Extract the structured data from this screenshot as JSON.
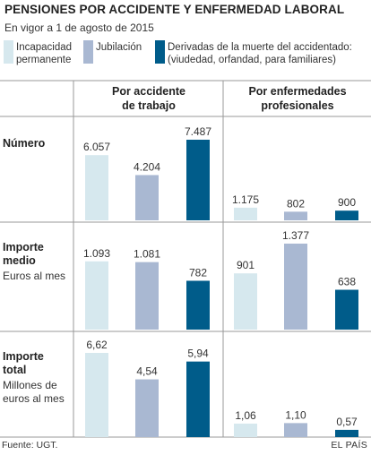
{
  "title": "PENSIONES POR ACCIDENTE Y ENFERMEDAD LABORAL",
  "subtitle": "En vigor a 1 de agosto de 2015",
  "legend": [
    {
      "label_line1": "Incapacidad",
      "label_line2": "permanente",
      "color": "#d6e8ee"
    },
    {
      "label_line1": "Jubilación",
      "label_line2": "",
      "color": "#a9b8d2"
    },
    {
      "label_line1": "Derivadas de la muerte del accidentado:",
      "label_line2": "(viudedad, orfandad, para familiares)",
      "color": "#005c8a"
    }
  ],
  "columns": [
    {
      "line1": "Por accidente",
      "line2": "de trabajo"
    },
    {
      "line1": "Por enfermedades",
      "line2": "profesionales"
    }
  ],
  "rows": [
    {
      "title_lines": [
        "Número"
      ],
      "sub_lines": []
    },
    {
      "title_lines": [
        "Importe",
        "medio"
      ],
      "sub_lines": [
        "Euros al mes"
      ]
    },
    {
      "title_lines": [
        "Importe",
        "total"
      ],
      "sub_lines": [
        "Millones de",
        "euros al mes"
      ]
    }
  ],
  "chart_data": [
    {
      "type": "bar",
      "row": "Número",
      "series": [
        "Incapacidad permanente",
        "Jubilación",
        "Derivadas de la muerte del accidentado"
      ],
      "panels": [
        {
          "panel": "Por accidente de trabajo",
          "values": [
            6057,
            4204,
            7487
          ],
          "labels": [
            "6.057",
            "4.204",
            "7.487"
          ]
        },
        {
          "panel": "Por enfermedades profesionales",
          "values": [
            1175,
            802,
            900
          ],
          "labels": [
            "1.175",
            "802",
            "900"
          ]
        }
      ],
      "ylim": [
        0,
        7487
      ]
    },
    {
      "type": "bar",
      "row": "Importe medio",
      "unit": "Euros al mes",
      "series": [
        "Incapacidad permanente",
        "Jubilación",
        "Derivadas de la muerte del accidentado"
      ],
      "panels": [
        {
          "panel": "Por accidente de trabajo",
          "values": [
            1093,
            1081,
            782
          ],
          "labels": [
            "1.093",
            "1.081",
            "782"
          ]
        },
        {
          "panel": "Por enfermedades profesionales",
          "values": [
            901,
            1377,
            638
          ],
          "labels": [
            "901",
            "1.377",
            "638"
          ]
        }
      ],
      "ylim": [
        0,
        1377
      ]
    },
    {
      "type": "bar",
      "row": "Importe total",
      "unit": "Millones de euros al mes",
      "series": [
        "Incapacidad permanente",
        "Jubilación",
        "Derivadas de la muerte del accidentado"
      ],
      "panels": [
        {
          "panel": "Por accidente de trabajo",
          "values": [
            6.62,
            4.54,
            5.94
          ],
          "labels": [
            "6,62",
            "4,54",
            "5,94"
          ]
        },
        {
          "panel": "Por enfermedades profesionales",
          "values": [
            1.06,
            1.1,
            0.57
          ],
          "labels": [
            "1,06",
            "1,10",
            "0,57"
          ]
        }
      ],
      "ylim": [
        0,
        6.62
      ]
    }
  ],
  "colors": {
    "incapacidad": "#d6e8ee",
    "jubilacion": "#a9b8d2",
    "muerte": "#005c8a",
    "panel_bg": "#ffffff",
    "page_bg": "#ffffff",
    "divider": "#999999"
  },
  "footer": {
    "source": "Fuente: UGT.",
    "credit": "EL PAÍS"
  }
}
